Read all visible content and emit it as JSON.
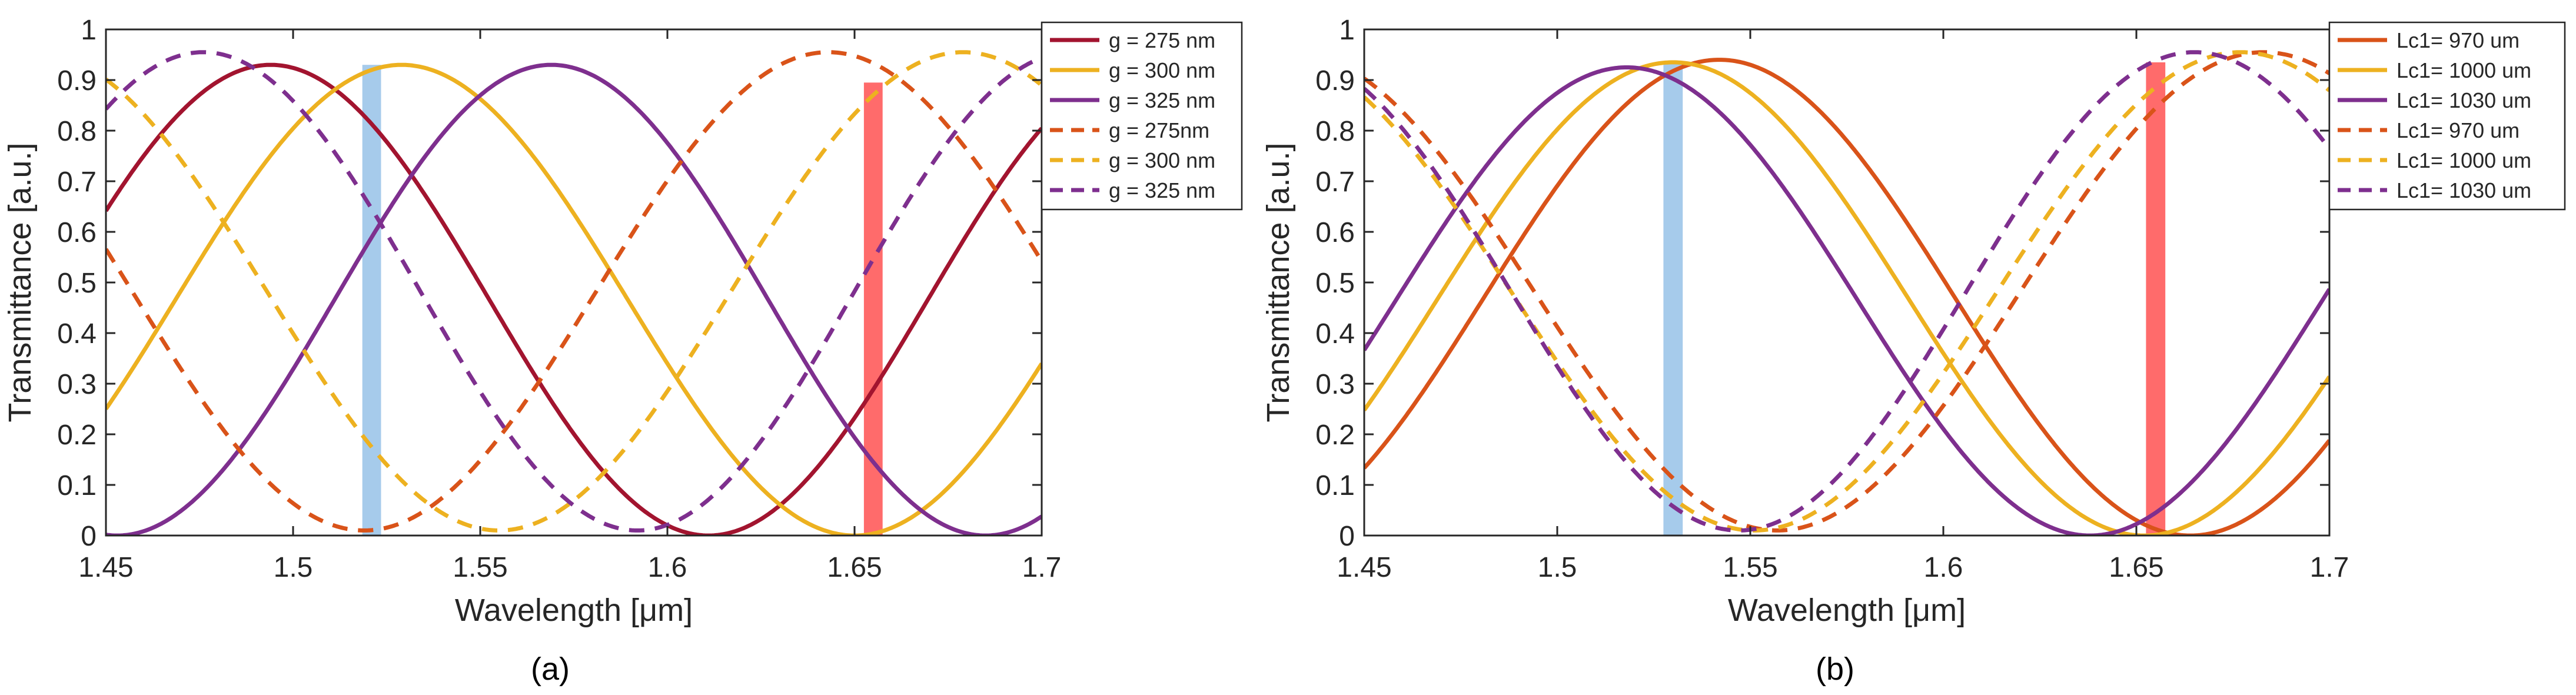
{
  "colors": {
    "dark_red": "#A2142F",
    "orange_red": "#D95319",
    "yellow": "#EDB120",
    "purple": "#7E2F8E",
    "blue_band": "#A6CBEB",
    "red_band": "#FF6B6B",
    "axis": "#262626"
  },
  "chart_data": [
    {
      "type": "line",
      "panel_label": "(a)",
      "xlabel": "Wavelength [μm]",
      "ylabel": "Transmittance [a.u.]",
      "xlim": [
        1.45,
        1.7
      ],
      "ylim": [
        0,
        1
      ],
      "xticks": [
        1.45,
        1.5,
        1.55,
        1.6,
        1.65,
        1.7
      ],
      "xtick_labels": [
        "1.45",
        "1.5",
        "1.55",
        "1.6",
        "1.65",
        "1.7"
      ],
      "yticks": [
        0,
        0.1,
        0.2,
        0.3,
        0.4,
        0.5,
        0.6,
        0.7,
        0.8,
        0.9,
        1
      ],
      "ytick_labels": [
        "0",
        "0.1",
        "0.2",
        "0.3",
        "0.4",
        "0.5",
        "0.6",
        "0.7",
        "0.8",
        "0.9",
        "1"
      ],
      "legend_position": "top-right",
      "highlight_bands": [
        {
          "name": "blue-band",
          "x_range": [
            1.5185,
            1.5235
          ],
          "y_max": 0.93,
          "color": "#A6CBEB"
        },
        {
          "name": "red-band",
          "x_range": [
            1.6525,
            1.6575
          ],
          "y_max": 0.895,
          "color": "#FF6B6B"
        }
      ],
      "series": [
        {
          "name": "g = 275 nm",
          "color": "#A2142F",
          "style": "solid",
          "peak": 0.93,
          "trough": 0.0,
          "peak_x": 1.494,
          "period": 0.234
        },
        {
          "name": "g = 300 nm",
          "color": "#EDB120",
          "style": "solid",
          "peak": 0.93,
          "trough": 0.0,
          "peak_x": 1.529,
          "period": 0.242
        },
        {
          "name": "g = 325 nm",
          "color": "#7E2F8E",
          "style": "solid",
          "peak": 0.93,
          "trough": 0.0,
          "peak_x": 1.569,
          "period": 0.232
        },
        {
          "name": "g = 275nm",
          "color": "#D95319",
          "style": "dashed",
          "peak": 0.955,
          "trough": 0.01,
          "peak_x": 1.643,
          "period": 0.248
        },
        {
          "name": "g = 300 nm",
          "color": "#EDB120",
          "style": "dashed",
          "peak": 0.955,
          "trough": 0.01,
          "peak_x": 1.679,
          "period": 0.248
        },
        {
          "name": "g = 325 nm",
          "color": "#7E2F8E",
          "style": "dashed",
          "peak": 0.955,
          "trough": 0.01,
          "peak_x": 1.708,
          "period": 0.232
        }
      ]
    },
    {
      "type": "line",
      "panel_label": "(b)",
      "xlabel": "Wavelength [μm]",
      "ylabel": "Transmittance [a.u.]",
      "xlim": [
        1.45,
        1.7
      ],
      "ylim": [
        0,
        1
      ],
      "xticks": [
        1.45,
        1.5,
        1.55,
        1.6,
        1.65,
        1.7
      ],
      "xtick_labels": [
        "1.45",
        "1.5",
        "1.55",
        "1.6",
        "1.65",
        "1.7"
      ],
      "yticks": [
        0,
        0.1,
        0.2,
        0.3,
        0.4,
        0.5,
        0.6,
        0.7,
        0.8,
        0.9,
        1
      ],
      "ytick_labels": [
        "0",
        "0.1",
        "0.2",
        "0.3",
        "0.4",
        "0.5",
        "0.6",
        "0.7",
        "0.8",
        "0.9",
        "1"
      ],
      "legend_position": "top-right",
      "highlight_bands": [
        {
          "name": "blue-band",
          "x_range": [
            1.5275,
            1.5325
          ],
          "y_max": 0.935,
          "color": "#A6CBEB"
        },
        {
          "name": "red-band",
          "x_range": [
            1.6525,
            1.6575
          ],
          "y_max": 0.935,
          "color": "#FF6B6B"
        }
      ],
      "series": [
        {
          "name": "Lc1= 970 um",
          "color": "#D95319",
          "style": "solid",
          "peak": 0.94,
          "trough": 0.0,
          "peak_x": 1.542,
          "period": 0.244
        },
        {
          "name": "Lc1= 1000 um",
          "color": "#EDB120",
          "style": "solid",
          "peak": 0.935,
          "trough": 0.0,
          "peak_x": 1.53,
          "period": 0.244
        },
        {
          "name": "Lc1= 1030 um",
          "color": "#7E2F8E",
          "style": "solid",
          "peak": 0.925,
          "trough": 0.0,
          "peak_x": 1.518,
          "period": 0.24
        },
        {
          "name": "Lc1= 970 um",
          "color": "#D95319",
          "style": "dashed",
          "peak": 0.955,
          "trough": 0.01,
          "peak_x": 1.683,
          "period": 0.252
        },
        {
          "name": "Lc1= 1000 um",
          "color": "#EDB120",
          "style": "dashed",
          "peak": 0.955,
          "trough": 0.01,
          "peak_x": 1.677,
          "period": 0.252
        },
        {
          "name": "Lc1= 1030 um",
          "color": "#7E2F8E",
          "style": "dashed",
          "peak": 0.955,
          "trough": 0.01,
          "peak_x": 1.665,
          "period": 0.236
        }
      ]
    }
  ]
}
